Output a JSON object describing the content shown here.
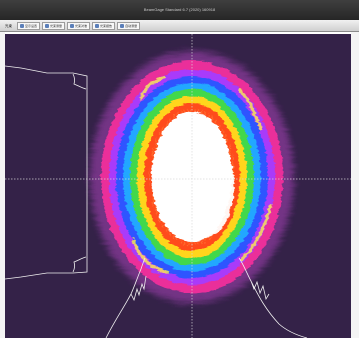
{
  "app": {
    "title": "BeamGage Standard 6.7 (2020) 160918"
  },
  "toolbar": {
    "buttons": [
      {
        "label": "光束",
        "icon": ""
      },
      {
        "label": "显示设置",
        "icon": "settings-icon"
      },
      {
        "label": "光束测量",
        "icon": "measure-icon"
      },
      {
        "label": "光束对准",
        "icon": "align-icon"
      },
      {
        "label": "光束报告",
        "icon": "report-icon"
      },
      {
        "label": "自动测量",
        "icon": "auto-icon"
      }
    ]
  },
  "view": {
    "background_color": "#342248",
    "crosshair_color": "#d8d8d8",
    "profile_color": "#f0f0f0",
    "beam_colors": [
      "#ffffff",
      "#ff4b1f",
      "#ffd51f",
      "#42d84b",
      "#24a7ff",
      "#2f55ff",
      "#a53cff",
      "#ff2d9d",
      "#8e3a9f"
    ]
  }
}
